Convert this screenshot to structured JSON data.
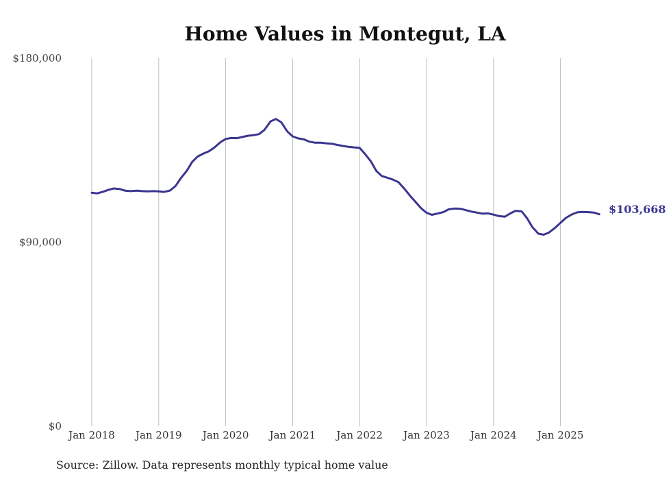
{
  "chart_data": {
    "type": "line",
    "title": "Home Values in Montegut, LA",
    "xlabel": "",
    "ylabel": "",
    "ylim": [
      0,
      180000
    ],
    "y_ticks": [
      "$180,000",
      "$90,000",
      "$0"
    ],
    "y_tick_values": [
      180000,
      90000,
      0
    ],
    "x_ticks": [
      "Jan 2018",
      "Jan 2019",
      "Jan 2020",
      "Jan 2021",
      "Jan 2022",
      "Jan 2023",
      "Jan 2024",
      "Jan 2025"
    ],
    "x_tick_years": [
      2018,
      2019,
      2020,
      2021,
      2022,
      2023,
      2024,
      2025
    ],
    "grid": "vertical",
    "line_color": "#3b3591",
    "end_label": "$103,668",
    "source": "Source: Zillow. Data represents monthly typical home value",
    "series": [
      {
        "x": [
          2018.0,
          2018.08,
          2018.17,
          2018.25,
          2018.33,
          2018.42,
          2018.5,
          2018.58,
          2018.67,
          2018.75,
          2018.83,
          2018.92,
          2019.0,
          2019.08,
          2019.17,
          2019.25,
          2019.33,
          2019.42,
          2019.5,
          2019.58,
          2019.67,
          2019.75,
          2019.83,
          2019.92,
          2020.0,
          2020.08,
          2020.17,
          2020.25,
          2020.33,
          2020.42,
          2020.5,
          2020.58,
          2020.67,
          2020.75,
          2020.83,
          2020.92,
          2021.0,
          2021.08,
          2021.17,
          2021.25,
          2021.33,
          2021.42,
          2021.5,
          2021.58,
          2021.67,
          2021.75,
          2021.83,
          2021.92,
          2022.0,
          2022.08,
          2022.17,
          2022.25,
          2022.33,
          2022.42,
          2022.5,
          2022.58,
          2022.67,
          2022.75,
          2022.83,
          2022.92,
          2023.0,
          2023.08,
          2023.17,
          2023.25,
          2023.33,
          2023.42,
          2023.5,
          2023.58,
          2023.67,
          2023.75,
          2023.83,
          2023.92,
          2024.0,
          2024.08,
          2024.17,
          2024.25,
          2024.33,
          2024.42,
          2024.5,
          2024.58,
          2024.67,
          2024.75,
          2024.83,
          2024.92,
          2025.0,
          2025.08,
          2025.17,
          2025.25,
          2025.33,
          2025.42,
          2025.5,
          2025.58
        ],
        "values": [
          114200,
          113900,
          114700,
          115600,
          116300,
          116000,
          115200,
          115000,
          115200,
          115000,
          114900,
          115000,
          114900,
          114600,
          115300,
          117500,
          121300,
          125000,
          129300,
          131900,
          133400,
          134500,
          136300,
          138900,
          140500,
          141000,
          140900,
          141500,
          142100,
          142400,
          142900,
          145000,
          149100,
          150300,
          148700,
          144200,
          141800,
          140800,
          140300,
          139200,
          138700,
          138700,
          138400,
          138200,
          137600,
          137100,
          136700,
          136400,
          136200,
          133200,
          129500,
          124900,
          122400,
          121500,
          120600,
          119400,
          116100,
          112900,
          109900,
          106600,
          104400,
          103400,
          104100,
          104700,
          106100,
          106500,
          106400,
          105800,
          105000,
          104500,
          104000,
          104100,
          103500,
          102800,
          102500,
          104100,
          105400,
          105100,
          101800,
          97400,
          94200,
          93700,
          94800,
          97100,
          99500,
          101900,
          103600,
          104600,
          104800,
          104700,
          104500,
          103668
        ]
      }
    ]
  }
}
